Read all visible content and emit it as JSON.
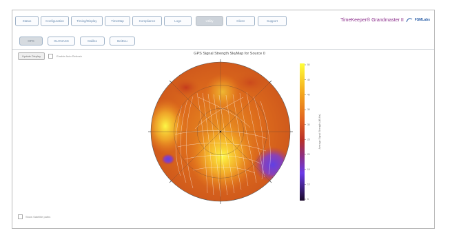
{
  "tabs": [
    "Status",
    "Configuration",
    "Timing/Display",
    "TimeMap",
    "Compliance",
    "Logs",
    "Utility",
    "Client",
    "Support"
  ],
  "active_tab": 6,
  "brand": {
    "title": "TimeKeeper® Grandmaster II",
    "logo_text": "FSMLabs"
  },
  "subtabs": [
    "GPS",
    "GLONASS",
    "Galileo",
    "BeiDou"
  ],
  "active_subtab": 0,
  "controls": {
    "update_button": "Update Display",
    "checkbox_label": "Enable Auto Refresh",
    "bottom_checkbox_label": "Show Satellite paths"
  },
  "chart": {
    "title": "GPS Signal Strength SkyMap for Source 0",
    "colorbar_label": "Average Signal Strength (dB-Hz)",
    "colorbar_ticks": [
      "50",
      "45",
      "40",
      "35",
      "30",
      "25",
      "20",
      "15",
      "10",
      "5"
    ],
    "colors": [
      "#ffff3a",
      "#f4a51c",
      "#e06020",
      "#b83028",
      "#8a2e86",
      "#6a3ae8",
      "#1a0a2a"
    ]
  }
}
